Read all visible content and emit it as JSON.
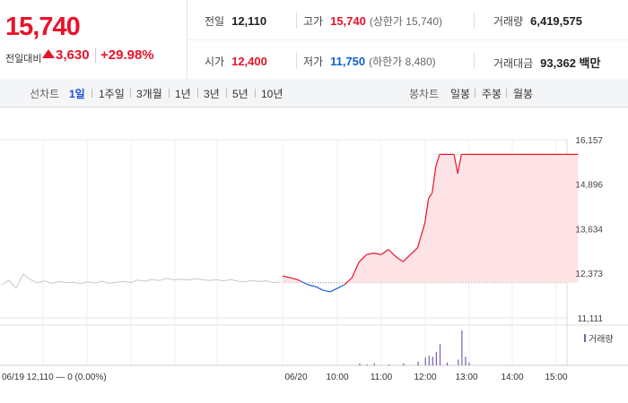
{
  "quote": {
    "price": "15,740",
    "change_label": "전일대비",
    "change": "3,630",
    "change_pct": "+29.98%"
  },
  "stats": {
    "prev_label": "전일",
    "prev": "12,110",
    "high_label": "고가",
    "high": "15,740",
    "high_sub": "(상한가 15,740)",
    "volume_label": "거래량",
    "volume": "6,419,575",
    "open_label": "시가",
    "open": "12,400",
    "low_label": "저가",
    "low": "11,750",
    "low_sub": "(하한가 8,480)",
    "amount_label": "거래대금",
    "amount": "93,362 백만"
  },
  "toolbar": {
    "line_label": "선차트",
    "periods": [
      "1일",
      "1주일",
      "3개월",
      "1년",
      "3년",
      "5년",
      "10년"
    ],
    "selected_period": "1일",
    "candle_label": "봉차트",
    "candle_periods": [
      "일봉",
      "주봉",
      "월봉"
    ]
  },
  "chart_data": {
    "type": "line",
    "y_ticks": [
      "16,157",
      "14,896",
      "13,634",
      "12,373",
      "11,111"
    ],
    "ylim": [
      11111,
      16157
    ],
    "reference_price": 12110,
    "volume_legend": "거래량",
    "x_ticks": [
      "06/20",
      "10:00",
      "11:00",
      "12:00",
      "13:00",
      "14:00",
      "15:00"
    ],
    "prev_day_caption": "06/19 12,110 — 0 (0.00%)",
    "x_label_prev": "06/19",
    "x_label_prev_price": "12,110",
    "x_label_prev_change": "0 (0.00%)",
    "colors": {
      "up": "#e8132b",
      "down": "#1b5fd0",
      "prev": "#c8c8c8",
      "fill": "#fde3e5",
      "volume": "#7b5fb2"
    },
    "prev_day_series": [
      12050,
      12180,
      11950,
      12350,
      12200,
      12100,
      12160,
      12090,
      12140,
      12110,
      12120,
      12080,
      12130,
      12100,
      12150,
      12090,
      12120,
      12140,
      12110,
      12180,
      12150,
      12200,
      12170,
      12230,
      12190,
      12210,
      12180,
      12220,
      12200,
      12170,
      12190,
      12160,
      12200,
      12150,
      12130,
      12170,
      12140,
      12160,
      12110,
      12130
    ],
    "today_series": [
      {
        "t": "09:00",
        "v": 12300
      },
      {
        "t": "09:05",
        "v": 12200
      },
      {
        "t": "09:10",
        "v": 12150
      },
      {
        "t": "09:20",
        "v": 12050
      },
      {
        "t": "09:30",
        "v": 12000
      },
      {
        "t": "09:40",
        "v": 11900
      },
      {
        "t": "09:50",
        "v": 11850
      },
      {
        "t": "10:00",
        "v": 11950
      },
      {
        "t": "10:10",
        "v": 12050
      },
      {
        "t": "10:20",
        "v": 12250
      },
      {
        "t": "10:30",
        "v": 12700
      },
      {
        "t": "10:40",
        "v": 12900
      },
      {
        "t": "10:50",
        "v": 12950
      },
      {
        "t": "11:00",
        "v": 12900
      },
      {
        "t": "11:10",
        "v": 13050
      },
      {
        "t": "11:20",
        "v": 12850
      },
      {
        "t": "11:30",
        "v": 12700
      },
      {
        "t": "11:40",
        "v": 12900
      },
      {
        "t": "11:50",
        "v": 13100
      },
      {
        "t": "12:00",
        "v": 13800
      },
      {
        "t": "12:05",
        "v": 14500
      },
      {
        "t": "12:10",
        "v": 14650
      },
      {
        "t": "12:15",
        "v": 15400
      },
      {
        "t": "12:20",
        "v": 15740
      },
      {
        "t": "12:30",
        "v": 15740
      },
      {
        "t": "12:40",
        "v": 15740
      },
      {
        "t": "12:45",
        "v": 15200
      },
      {
        "t": "12:50",
        "v": 15740
      },
      {
        "t": "13:00",
        "v": 15740
      },
      {
        "t": "14:00",
        "v": 15740
      },
      {
        "t": "15:00",
        "v": 15740
      },
      {
        "t": "15:30",
        "v": 15740
      }
    ],
    "volume_bars": [
      {
        "t": "10:30",
        "v": 2
      },
      {
        "t": "10:40",
        "v": 1
      },
      {
        "t": "10:50",
        "v": 2
      },
      {
        "t": "11:10",
        "v": 1
      },
      {
        "t": "11:30",
        "v": 2
      },
      {
        "t": "11:50",
        "v": 4
      },
      {
        "t": "12:00",
        "v": 8
      },
      {
        "t": "12:05",
        "v": 10
      },
      {
        "t": "12:10",
        "v": 9
      },
      {
        "t": "12:15",
        "v": 14
      },
      {
        "t": "12:20",
        "v": 22
      },
      {
        "t": "12:30",
        "v": 3
      },
      {
        "t": "12:45",
        "v": 6
      },
      {
        "t": "12:50",
        "v": 36
      },
      {
        "t": "12:55",
        "v": 9
      },
      {
        "t": "13:00",
        "v": 3
      }
    ]
  }
}
